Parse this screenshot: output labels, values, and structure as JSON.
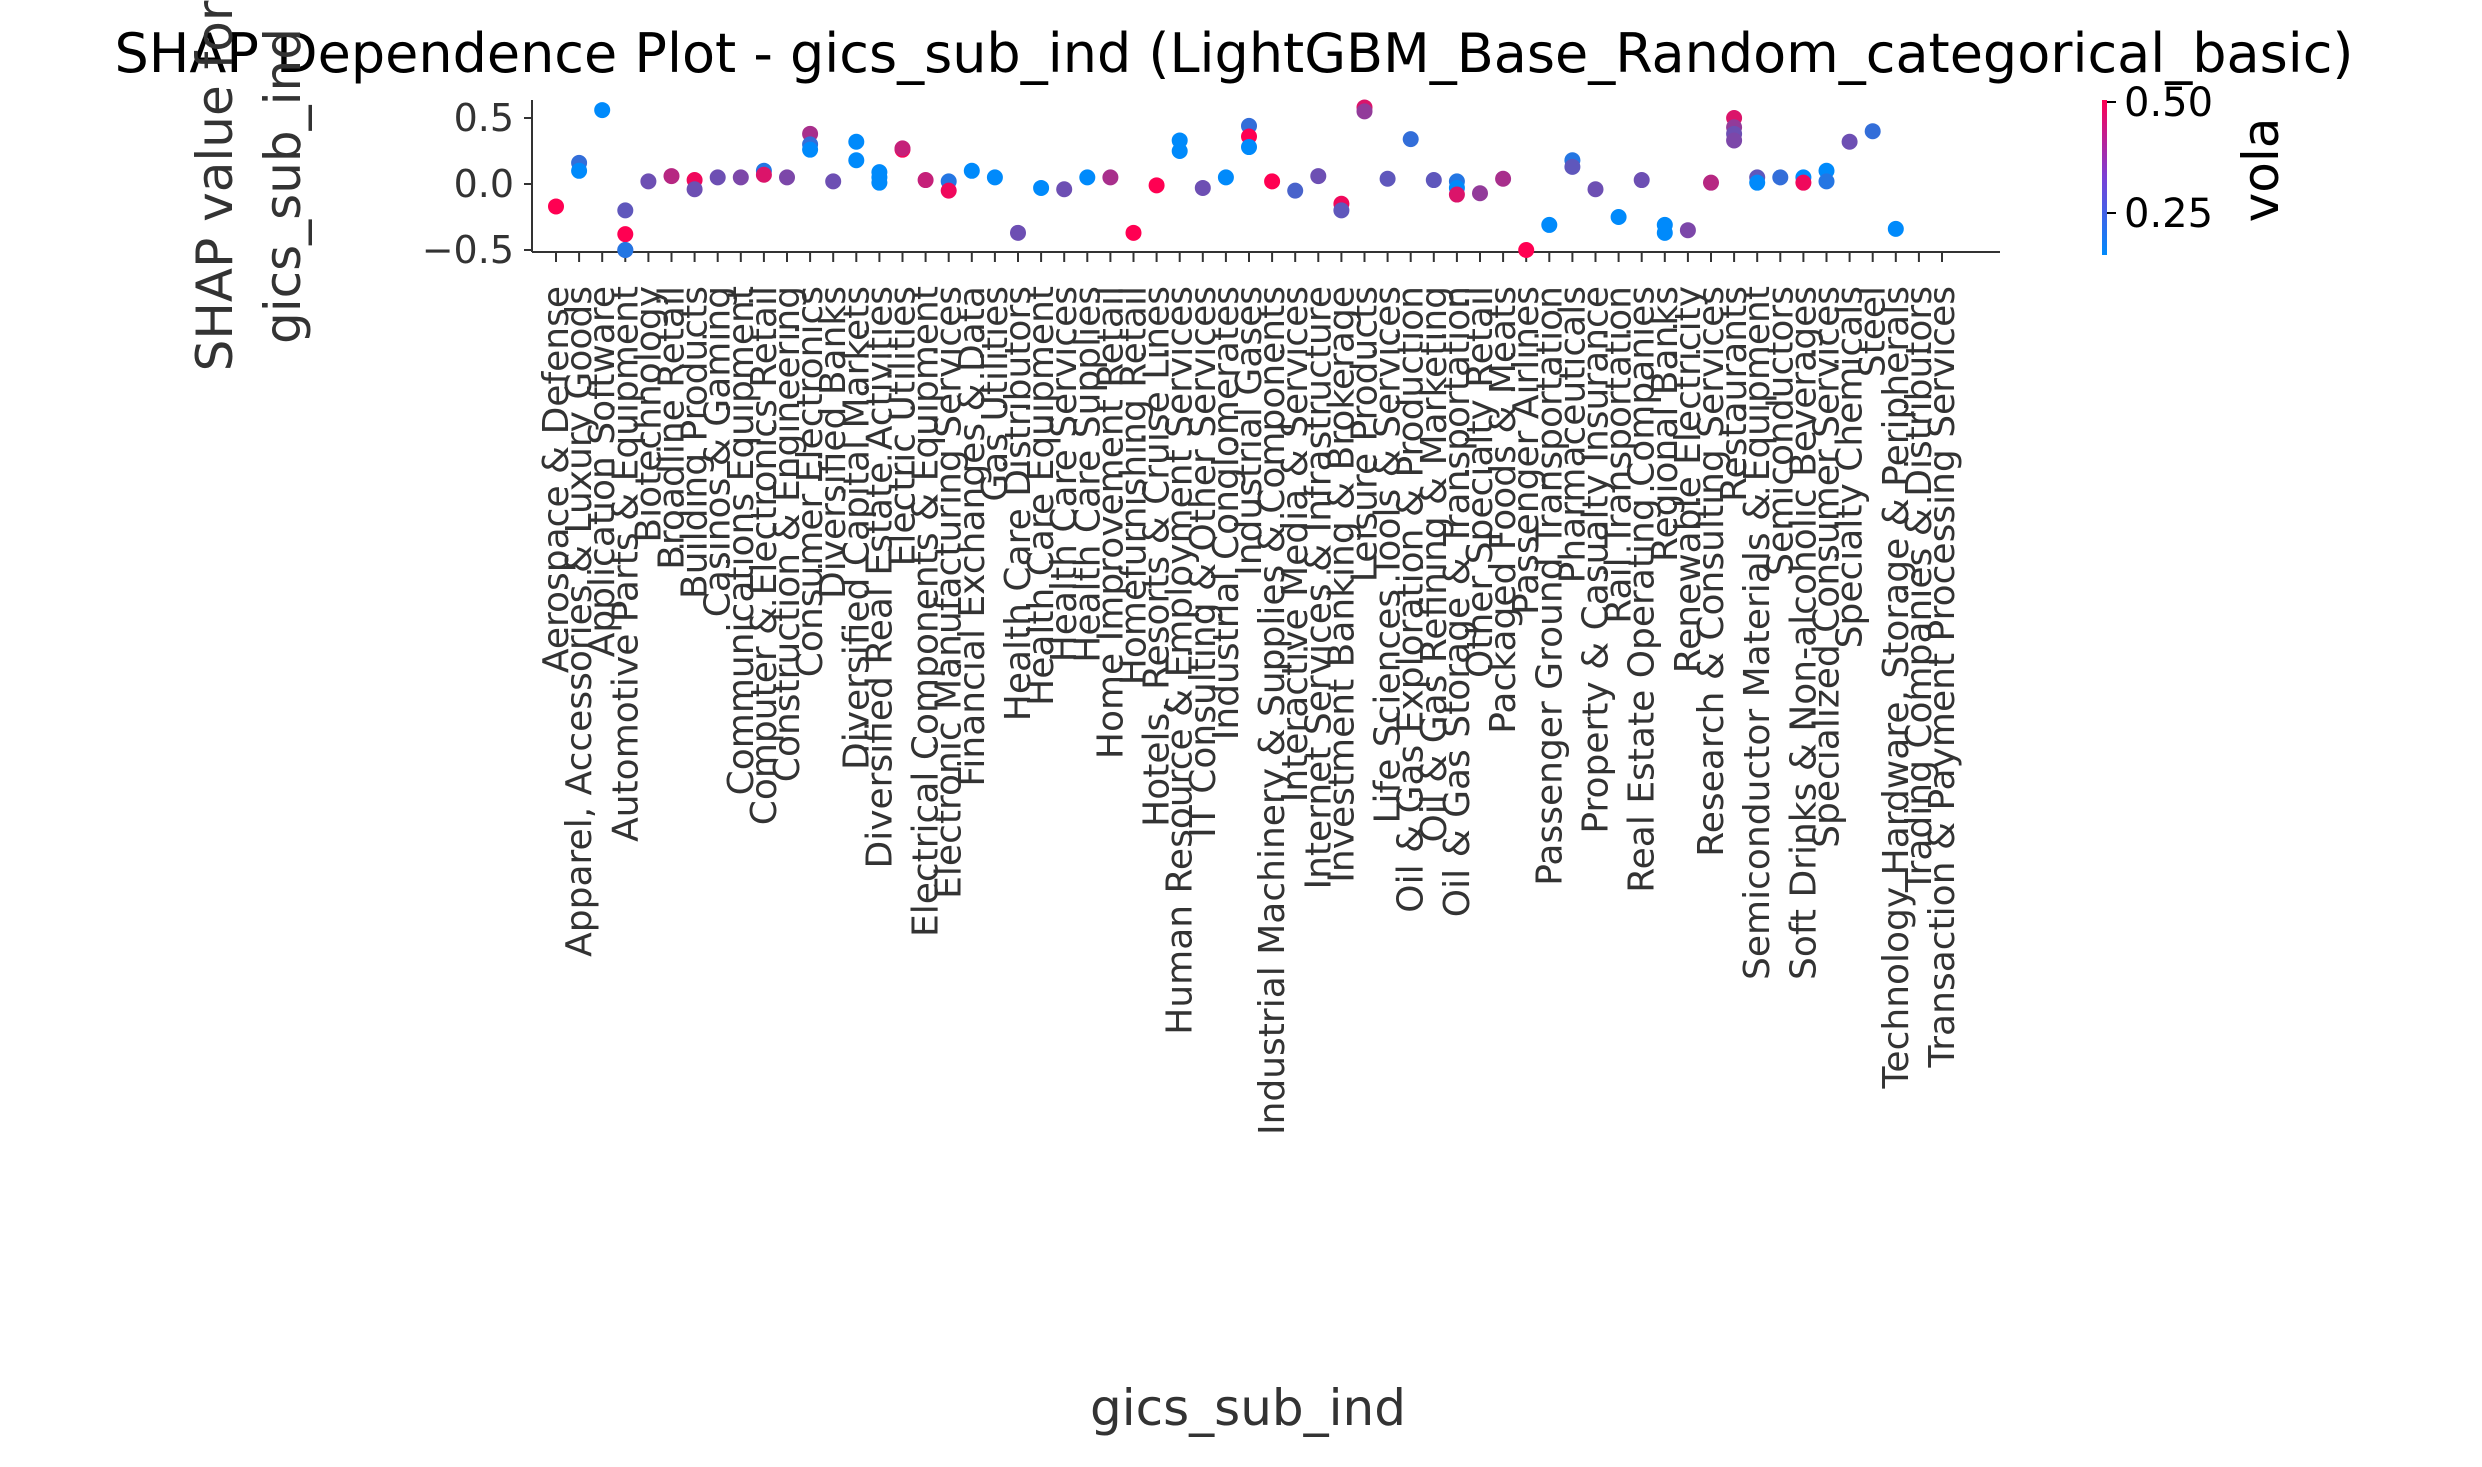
{
  "chart_data": {
    "type": "scatter",
    "title": "SHAP Dependence Plot - gics_sub_ind (LightGBM_Base_Random_categorical_basic)",
    "xlabel": "gics_sub_ind",
    "ylabel": "SHAP value for\ngics_sub_ind",
    "ylim": [
      -0.55,
      0.62
    ],
    "yticks": [
      "0.5",
      "0.0",
      "−0.5"
    ],
    "ytick_values": [
      0.5,
      0.0,
      -0.5
    ],
    "categories": [
      "Aerospace & Defense",
      "Apparel, Accessories & Luxury Goods",
      "Application Software",
      "Automotive Parts & Equipment",
      "Biotechnology",
      "Broadline Retail",
      "Building Products",
      "Casinos & Gaming",
      "Communications Equipment",
      "Computer & Electronics Retail",
      "Construction & Engineering",
      "Consumer Electronics",
      "Diversified Banks",
      "Diversified Capital Markets",
      "Diversified Real Estate Activities",
      "Electric Utilities",
      "Electrical Components & Equipment",
      "Electronic Manufacturing Services",
      "Financial Exchanges & Data",
      "Gas Utilities",
      "Health Care Distributors",
      "Health Care Equipment",
      "Health Care Services",
      "Health Care Supplies",
      "Home Improvement Retail",
      "Homefurnishing Retail",
      "Hotels, Resorts & Cruise Lines",
      "Human Resource & Employment Services",
      "IT Consulting & Other Services",
      "Industrial Conglomerates",
      "Industrial Gases",
      "Industrial Machinery & Supplies & Components",
      "Interactive Media & Services",
      "Internet Services & Infrastructure",
      "Investment Banking & Brokerage",
      "Leisure Products",
      "Life Sciences Tools & Services",
      "Oil & Gas Exploration & Production",
      "Oil & Gas Refining & Marketing",
      "Oil & Gas Storage & Transportation",
      "Other Specialty Retail",
      "Packaged Foods & Meats",
      "Passenger Airlines",
      "Passenger Ground Transportation",
      "Pharmaceuticals",
      "Property & Casualty Insurance",
      "Rail Transportation",
      "Real Estate Operating Companies",
      "Regional Banks",
      "Renewable Electricity",
      "Research & Consulting Services",
      "Restaurants",
      "Semiconductor Materials & Equipment",
      "Semiconductors",
      "Soft Drinks & Non-alcoholic Beverages",
      "Specialized Consumer Services",
      "Specialty Chemicals",
      "Steel",
      "Technology Hardware, Storage & Peripherals",
      "Trading Companies & Distributors",
      "Transaction & Payment Processing Services"
    ],
    "points": [
      {
        "c": 0,
        "y": -0.17,
        "v": 0.5
      },
      {
        "c": 1,
        "y": 0.16,
        "v": 0.22
      },
      {
        "c": 1,
        "y": 0.1,
        "v": 0.15
      },
      {
        "c": 2,
        "y": 0.56,
        "v": 0.15
      },
      {
        "c": 3,
        "y": -0.5,
        "v": 0.32
      },
      {
        "c": 3,
        "y": -0.38,
        "v": 0.5
      },
      {
        "c": 3,
        "y": -0.2,
        "v": 0.28
      },
      {
        "c": 3,
        "y": -0.5,
        "v": 0.2
      },
      {
        "c": 4,
        "y": 0.02,
        "v": 0.3
      },
      {
        "c": 5,
        "y": 0.06,
        "v": 0.4
      },
      {
        "c": 6,
        "y": 0.03,
        "v": 0.48
      },
      {
        "c": 6,
        "y": -0.04,
        "v": 0.3
      },
      {
        "c": 7,
        "y": 0.05,
        "v": 0.3
      },
      {
        "c": 8,
        "y": 0.05,
        "v": 0.32
      },
      {
        "c": 9,
        "y": 0.1,
        "v": 0.2
      },
      {
        "c": 9,
        "y": 0.07,
        "v": 0.45
      },
      {
        "c": 10,
        "y": 0.05,
        "v": 0.32
      },
      {
        "c": 11,
        "y": 0.38,
        "v": 0.38
      },
      {
        "c": 11,
        "y": 0.3,
        "v": 0.22
      },
      {
        "c": 11,
        "y": 0.26,
        "v": 0.15
      },
      {
        "c": 12,
        "y": 0.02,
        "v": 0.3
      },
      {
        "c": 13,
        "y": 0.32,
        "v": 0.15
      },
      {
        "c": 13,
        "y": 0.18,
        "v": 0.15
      },
      {
        "c": 14,
        "y": 0.09,
        "v": 0.15
      },
      {
        "c": 14,
        "y": 0.05,
        "v": 0.15
      },
      {
        "c": 14,
        "y": 0.01,
        "v": 0.15
      },
      {
        "c": 15,
        "y": 0.26,
        "v": 0.5
      },
      {
        "c": 15,
        "y": 0.27,
        "v": 0.42
      },
      {
        "c": 16,
        "y": 0.03,
        "v": 0.42
      },
      {
        "c": 17,
        "y": 0.02,
        "v": 0.2
      },
      {
        "c": 17,
        "y": -0.05,
        "v": 0.48
      },
      {
        "c": 18,
        "y": 0.1,
        "v": 0.15
      },
      {
        "c": 19,
        "y": 0.05,
        "v": 0.15
      },
      {
        "c": 20,
        "y": -0.37,
        "v": 0.3
      },
      {
        "c": 21,
        "y": -0.03,
        "v": 0.15
      },
      {
        "c": 22,
        "y": -0.04,
        "v": 0.3
      },
      {
        "c": 23,
        "y": 0.05,
        "v": 0.15
      },
      {
        "c": 24,
        "y": 0.05,
        "v": 0.38
      },
      {
        "c": 25,
        "y": -0.37,
        "v": 0.5
      },
      {
        "c": 26,
        "y": -0.01,
        "v": 0.5
      },
      {
        "c": 27,
        "y": 0.33,
        "v": 0.15
      },
      {
        "c": 27,
        "y": 0.25,
        "v": 0.15
      },
      {
        "c": 28,
        "y": -0.03,
        "v": 0.3
      },
      {
        "c": 29,
        "y": 0.05,
        "v": 0.15
      },
      {
        "c": 30,
        "y": 0.44,
        "v": 0.22
      },
      {
        "c": 30,
        "y": 0.36,
        "v": 0.5
      },
      {
        "c": 30,
        "y": 0.28,
        "v": 0.15
      },
      {
        "c": 31,
        "y": 0.02,
        "v": 0.5
      },
      {
        "c": 32,
        "y": -0.05,
        "v": 0.25
      },
      {
        "c": 33,
        "y": 0.06,
        "v": 0.3
      },
      {
        "c": 34,
        "y": -0.15,
        "v": 0.48
      },
      {
        "c": 34,
        "y": -0.2,
        "v": 0.28
      },
      {
        "c": 35,
        "y": 0.58,
        "v": 0.45
      },
      {
        "c": 35,
        "y": 0.55,
        "v": 0.35
      },
      {
        "c": 36,
        "y": 0.04,
        "v": 0.28
      },
      {
        "c": 37,
        "y": 0.34,
        "v": 0.22
      },
      {
        "c": 38,
        "y": 0.03,
        "v": 0.28
      },
      {
        "c": 39,
        "y": 0.02,
        "v": 0.2
      },
      {
        "c": 39,
        "y": -0.03,
        "v": 0.15
      },
      {
        "c": 39,
        "y": -0.08,
        "v": 0.45
      },
      {
        "c": 40,
        "y": -0.07,
        "v": 0.35
      },
      {
        "c": 41,
        "y": 0.04,
        "v": 0.38
      },
      {
        "c": 42,
        "y": -0.5,
        "v": 0.5
      },
      {
        "c": 43,
        "y": -0.31,
        "v": 0.15
      },
      {
        "c": 44,
        "y": 0.18,
        "v": 0.2
      },
      {
        "c": 44,
        "y": 0.13,
        "v": 0.28
      },
      {
        "c": 45,
        "y": -0.04,
        "v": 0.3
      },
      {
        "c": 46,
        "y": -0.25,
        "v": 0.15
      },
      {
        "c": 47,
        "y": 0.03,
        "v": 0.3
      },
      {
        "c": 48,
        "y": -0.31,
        "v": 0.15
      },
      {
        "c": 48,
        "y": -0.37,
        "v": 0.15
      },
      {
        "c": 49,
        "y": -0.35,
        "v": 0.32
      },
      {
        "c": 50,
        "y": 0.01,
        "v": 0.4
      },
      {
        "c": 51,
        "y": 0.5,
        "v": 0.45
      },
      {
        "c": 51,
        "y": 0.43,
        "v": 0.35
      },
      {
        "c": 51,
        "y": 0.38,
        "v": 0.3
      },
      {
        "c": 51,
        "y": 0.33,
        "v": 0.32
      },
      {
        "c": 52,
        "y": 0.05,
        "v": 0.28
      },
      {
        "c": 52,
        "y": 0.01,
        "v": 0.15
      },
      {
        "c": 53,
        "y": 0.05,
        "v": 0.22
      },
      {
        "c": 54,
        "y": 0.05,
        "v": 0.15
      },
      {
        "c": 54,
        "y": 0.01,
        "v": 0.48
      },
      {
        "c": 55,
        "y": 0.1,
        "v": 0.15
      },
      {
        "c": 55,
        "y": 0.02,
        "v": 0.2
      },
      {
        "c": 56,
        "y": 0.32,
        "v": 0.3
      },
      {
        "c": 57,
        "y": 0.4,
        "v": 0.22
      },
      {
        "c": 58,
        "y": -0.34,
        "v": 0.15
      }
    ],
    "colorbar": {
      "label": "vola",
      "ticks": [
        "0.50",
        "0.25"
      ],
      "tick_values": [
        0.5,
        0.25
      ],
      "range": [
        0.15,
        0.5
      ],
      "low_color": "#008afb",
      "high_color": "#ff0052"
    },
    "grid": false,
    "legend": "none"
  }
}
